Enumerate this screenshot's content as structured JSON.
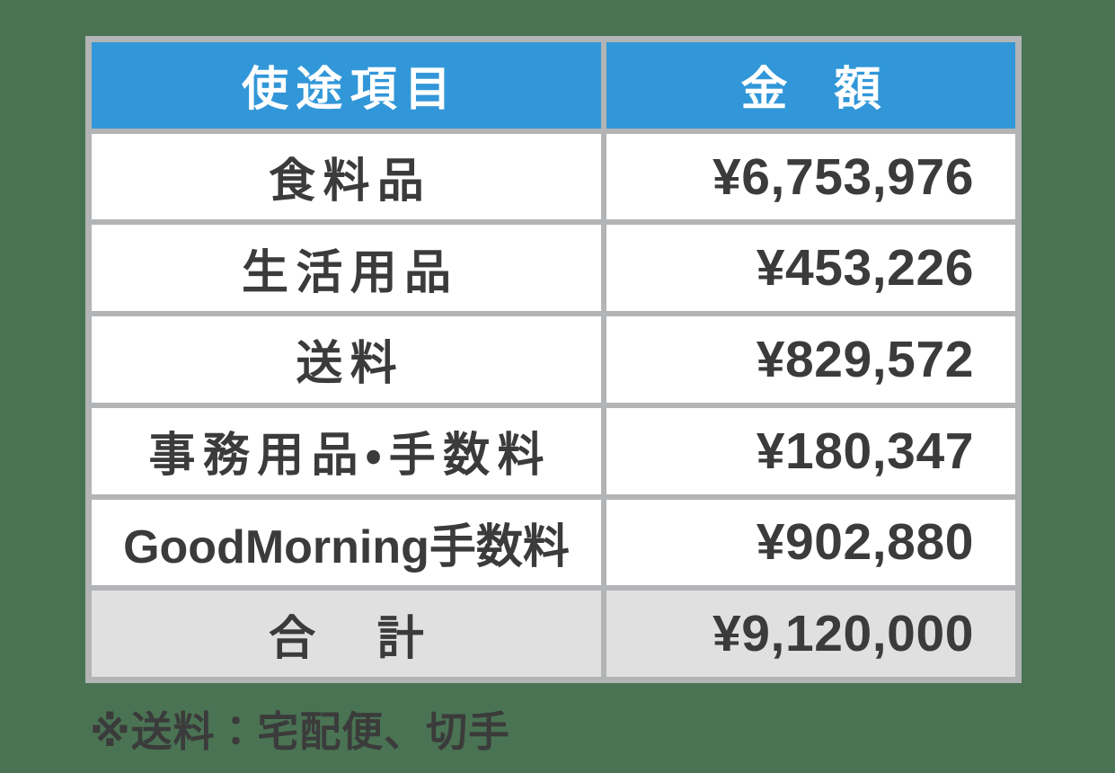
{
  "colors": {
    "background": "#4a7353",
    "header_bg": "#3297d8",
    "header_text": "#ffffff",
    "border": "#b2b4b6",
    "total_bg": "#e0e0e0",
    "text": "#3b3b3b"
  },
  "table": {
    "header": {
      "item": "使途項目",
      "amount": "金　額"
    },
    "rows": [
      {
        "item": "食料品",
        "amount": "¥6,753,976"
      },
      {
        "item": "生活用品",
        "amount": "¥453,226"
      },
      {
        "item": "送料",
        "amount": "¥829,572"
      },
      {
        "item": "事務用品・手数料",
        "amount": "¥180,347"
      },
      {
        "item": "GoodMorning手数料",
        "amount": "¥902,880"
      }
    ],
    "total": {
      "item": "合　計",
      "amount": "¥9,120,000"
    }
  },
  "footnote": "※送料：宅配便、切手",
  "chart_data": {
    "type": "table",
    "title": "",
    "columns": [
      "使途項目",
      "金額"
    ],
    "rows": [
      {
        "item": "食料品",
        "amount_jpy": 6753976
      },
      {
        "item": "生活用品",
        "amount_jpy": 453226
      },
      {
        "item": "送料",
        "amount_jpy": 829572
      },
      {
        "item": "事務用品・手数料",
        "amount_jpy": 180347
      },
      {
        "item": "GoodMorning手数料",
        "amount_jpy": 902880
      }
    ],
    "total": {
      "item": "合計",
      "amount_jpy": 9120000
    },
    "currency": "JPY",
    "annotations": [
      "※送料：宅配便、切手"
    ]
  }
}
